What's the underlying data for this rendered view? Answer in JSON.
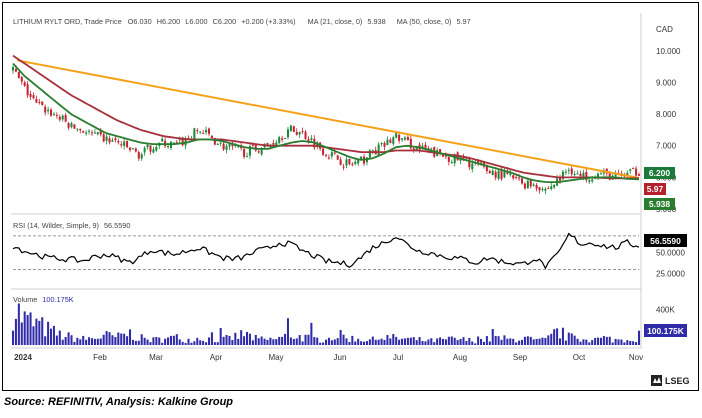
{
  "legend": {
    "main_symbol": "LITHIUM RYLT ORD, Trade Price",
    "ohlc": [
      {
        "k": "O",
        "v": "6.030"
      },
      {
        "k": "H",
        "v": "6.200"
      },
      {
        "k": "L",
        "v": "6.000"
      },
      {
        "k": "C",
        "v": "6.200"
      }
    ],
    "change": "+0.200 (+3.33%)",
    "ma21_label": "MA (21, close, 0)",
    "ma21_value": "5.938",
    "ma50_label": "MA (50, close, 0)",
    "ma50_value": "5.97",
    "rsi_label": "RSI (14, Wilder, Simple, 9)",
    "rsi_value": "56.5590",
    "volume_label": "Volume",
    "volume_value": "100.175K"
  },
  "currency": "CAD",
  "badges": {
    "price": "6.200",
    "ma50": "5.97",
    "ma21": "5.938",
    "rsi": "56.5590",
    "volume": "100.175K"
  },
  "footer": {
    "logo_text": "LSEG",
    "source": "Source: REFINITIV, Analysis: Kalkine Group"
  },
  "colors": {
    "up": "#1a8a3a",
    "down": "#c8202e",
    "ma21": "#2a7d2e",
    "ma50": "#a8303c",
    "trend": "#f5a21b",
    "rsi": "#000000",
    "volume": "#2e2aa8",
    "price_badge": "#1a7a3a",
    "ma50_badge": "#b81f2d",
    "ma21_badge": "#2a7d2e",
    "rsi_badge": "#000000",
    "volume_badge": "#2e2aa8"
  },
  "chart_data": {
    "type": "candlestick",
    "price_axis": {
      "ticks": [
        "10.000",
        "9.000",
        "8.000",
        "7.000",
        "6.000",
        "5.000"
      ],
      "ylim": [
        5.0,
        10.5
      ]
    },
    "rsi_axis": {
      "ticks": [
        "50.0000",
        "25.0000"
      ],
      "ylim": [
        14,
        90
      ],
      "guides": [
        70,
        30
      ]
    },
    "volume_axis": {
      "ticks": [
        "400K"
      ],
      "ylim": [
        0,
        560
      ]
    },
    "x_axis": {
      "labels": [
        "2024",
        "Feb",
        "Mar",
        "Apr",
        "May",
        "Jun",
        "Jul",
        "Aug",
        "Sep",
        "Oct",
        "Nov"
      ]
    },
    "close_weekly": [
      9.4,
      8.8,
      8.3,
      8.1,
      7.9,
      7.6,
      7.5,
      7.3,
      7.2,
      7.1,
      6.9,
      6.7,
      7.0,
      7.1,
      7.0,
      7.2,
      7.5,
      7.3,
      7.0,
      6.9,
      6.8,
      6.9,
      7.0,
      7.3,
      7.5,
      7.4,
      7.1,
      6.8,
      6.6,
      6.4,
      6.5,
      6.8,
      7.0,
      7.3,
      7.1,
      6.9,
      6.8,
      6.7,
      6.6,
      6.5,
      6.4,
      6.2,
      6.1,
      6.0,
      5.8,
      5.8,
      5.6,
      5.9,
      6.3,
      6.0,
      6.1,
      6.1,
      6.0,
      6.1,
      6.2
    ],
    "ma21_weekly": [
      9.6,
      9.2,
      8.9,
      8.6,
      8.3,
      8.0,
      7.8,
      7.6,
      7.4,
      7.3,
      7.2,
      7.1,
      7.05,
      7.05,
      7.05,
      7.1,
      7.2,
      7.2,
      7.15,
      7.05,
      6.95,
      6.9,
      6.9,
      7.0,
      7.1,
      7.15,
      7.1,
      6.95,
      6.8,
      6.65,
      6.55,
      6.6,
      6.75,
      6.95,
      7.0,
      6.95,
      6.85,
      6.75,
      6.65,
      6.55,
      6.45,
      6.35,
      6.25,
      6.15,
      6.0,
      5.9,
      5.85,
      5.85,
      5.9,
      5.95,
      6.0,
      6.0,
      6.0,
      5.95,
      5.938
    ],
    "ma50_weekly": [
      9.85,
      9.6,
      9.35,
      9.1,
      8.85,
      8.6,
      8.4,
      8.2,
      8.0,
      7.8,
      7.65,
      7.5,
      7.4,
      7.3,
      7.25,
      7.2,
      7.2,
      7.2,
      7.2,
      7.15,
      7.1,
      7.05,
      7.0,
      7.0,
      7.0,
      7.0,
      7.0,
      6.95,
      6.9,
      6.85,
      6.8,
      6.8,
      6.8,
      6.85,
      6.85,
      6.85,
      6.8,
      6.75,
      6.7,
      6.65,
      6.55,
      6.45,
      6.35,
      6.25,
      6.15,
      6.1,
      6.05,
      6.0,
      6.0,
      6.0,
      6.0,
      5.98,
      5.97,
      5.97,
      5.97
    ],
    "rsi_weekly": [
      58,
      52,
      48,
      44,
      43,
      42,
      40,
      45,
      48,
      44,
      38,
      45,
      54,
      50,
      48,
      52,
      56,
      50,
      44,
      42,
      45,
      52,
      55,
      62,
      60,
      52,
      46,
      40,
      38,
      36,
      44,
      56,
      62,
      70,
      60,
      52,
      50,
      46,
      44,
      42,
      38,
      44,
      40,
      38,
      36,
      44,
      33,
      48,
      72,
      60,
      62,
      58,
      56,
      62,
      56.559
    ],
    "volume_weekly": [
      460,
      300,
      250,
      180,
      120,
      90,
      70,
      80,
      110,
      90,
      140,
      80,
      60,
      70,
      90,
      60,
      80,
      70,
      60,
      90,
      130,
      70,
      60,
      80,
      120,
      90,
      70,
      60,
      120,
      80,
      70,
      60,
      90,
      80,
      70,
      60,
      50,
      60,
      70,
      60,
      50,
      70,
      80,
      60,
      90,
      50,
      60,
      160,
      90,
      70,
      60,
      80,
      60,
      70,
      100.175
    ]
  }
}
